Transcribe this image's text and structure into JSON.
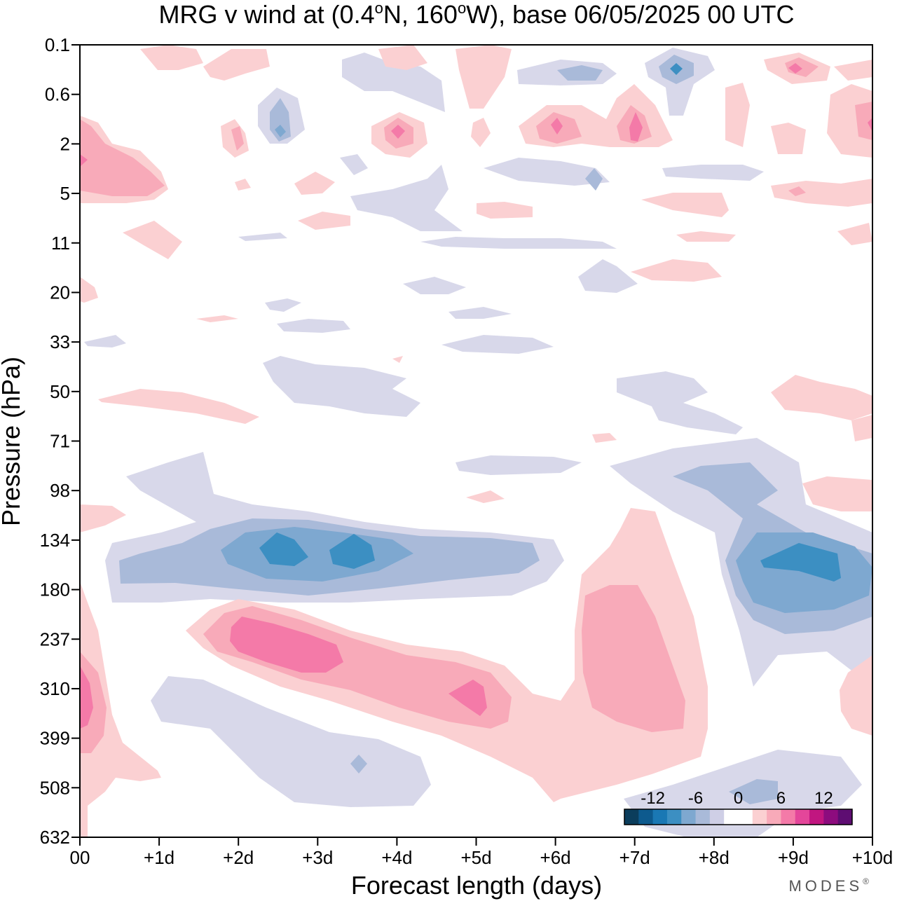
{
  "chart_data": {
    "type": "heatmap",
    "title": {
      "prefix": "MRG v wind at (0.4",
      "deg1": "o",
      "mid": "N, 160",
      "deg2": "o",
      "suffix": "W),  base 06/05/2025  00 UTC"
    },
    "xlabel": "Forecast length (days)",
    "ylabel": "Pressure (hPa)",
    "x_tick_labels": [
      "00",
      "+1d",
      "+2d",
      "+3d",
      "+4d",
      "+5d",
      "+6d",
      "+7d",
      "+8d",
      "+9d",
      "+10d"
    ],
    "xlim": [
      0,
      10
    ],
    "y_tick_labels": [
      "0.1",
      "0.6",
      "2",
      "5",
      "11",
      "20",
      "33",
      "50",
      "71",
      "98",
      "134",
      "180",
      "237",
      "310",
      "399",
      "508",
      "632"
    ],
    "y_axis_note": "pressure levels shown at equal spacing, 0.1 hPa at top, 632 hPa at bottom",
    "colorbar": {
      "tick_labels": [
        "-12",
        "-6",
        "0",
        "6",
        "12"
      ],
      "tick_values": [
        -12,
        -6,
        0,
        6,
        12
      ],
      "bin_edges": [
        -16,
        -14,
        -12,
        -10,
        -8,
        -6,
        -4,
        -2,
        0,
        2,
        4,
        6,
        8,
        10,
        12,
        14,
        16
      ],
      "colors": [
        "#0b3d5c",
        "#0d5a8e",
        "#1a78b4",
        "#3c8fc2",
        "#7ea8d0",
        "#a9bad9",
        "#cfcfe6",
        "#ffffff",
        "#ffffff",
        "#fbd0d2",
        "#f8aab9",
        "#f47aa8",
        "#e4469a",
        "#c11680",
        "#8d0c7e",
        "#5e0d72"
      ]
    },
    "features": [
      {
        "name": "upper-left positive lobe",
        "x": [
          0,
          1
        ],
        "level": [
          "1",
          "5"
        ],
        "peak": 6
      },
      {
        "name": "negative band near 134 hPa",
        "x": [
          0.5,
          6
        ],
        "level": [
          "98",
          "180"
        ],
        "peak": -12,
        "minima_at_days": [
          2.5,
          3.5
        ]
      },
      {
        "name": "negative band near 134-180 hPa",
        "x": [
          8.5,
          10
        ],
        "level": [
          "98",
          "237"
        ],
        "peak": -12
      },
      {
        "name": "positive diagonal band",
        "x": [
          1.5,
          5.5
        ],
        "level": [
          "180",
          "399"
        ],
        "peak": 10
      },
      {
        "name": "positive lobe at day 7",
        "x": [
          6.2,
          8
        ],
        "level": [
          "134",
          "399"
        ],
        "peak": 6
      },
      {
        "name": "lower-left positive lobe",
        "x": [
          0,
          1
        ],
        "level": [
          "237",
          "632"
        ],
        "peak": 8
      },
      {
        "name": "lower negative lobe",
        "x": [
          1,
          4.5
        ],
        "level": [
          "310",
          "508"
        ],
        "peak": -6
      }
    ]
  },
  "brand": "MODES",
  "brand_mark": "®"
}
